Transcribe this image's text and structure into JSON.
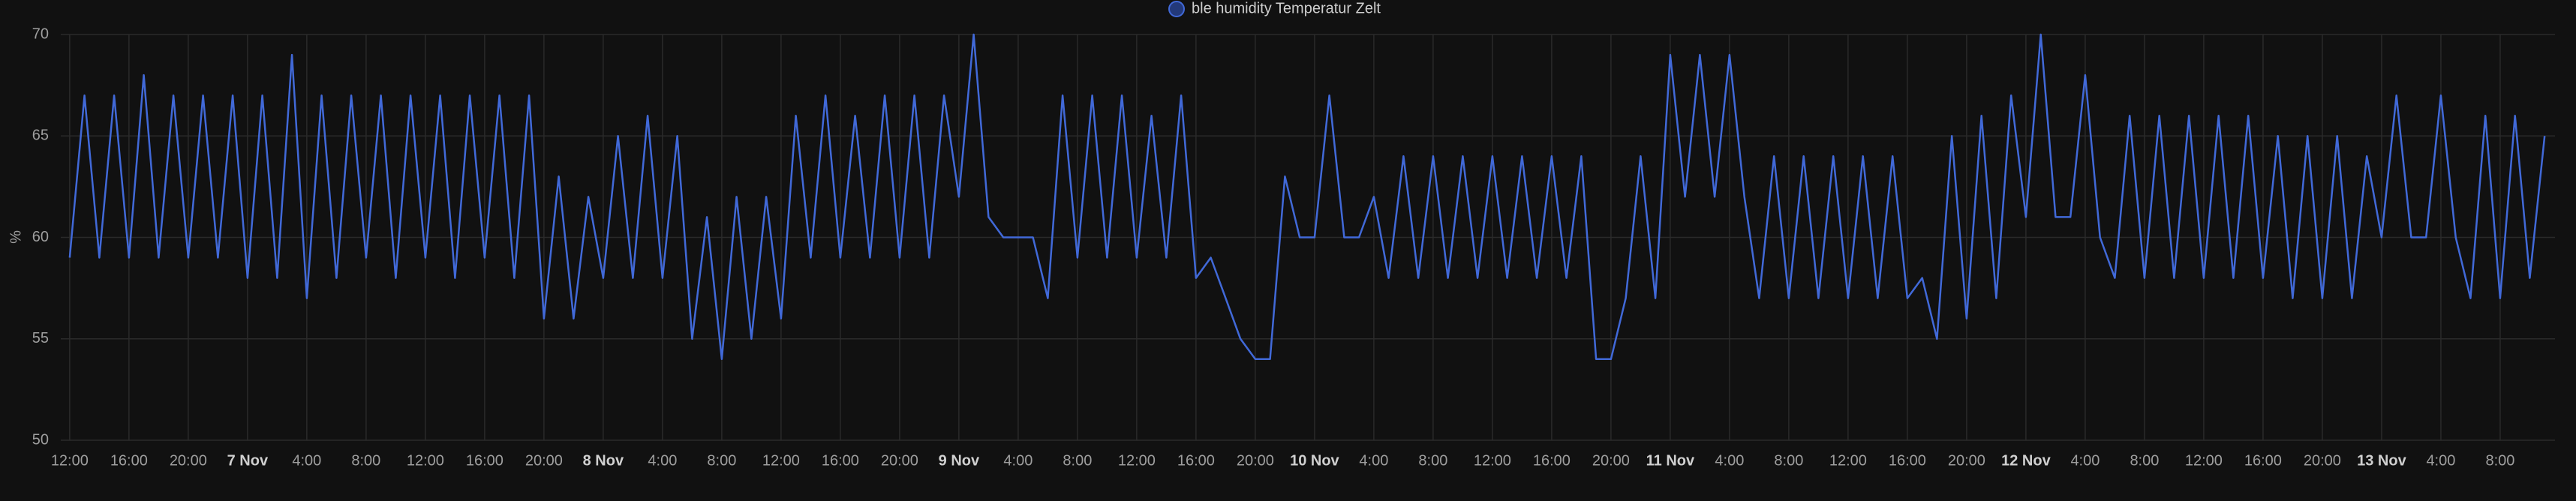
{
  "chart_data": {
    "type": "line",
    "title": "ble humidity Temperatur Zelt",
    "y_label": "%",
    "x": [
      0,
      1,
      2,
      3,
      4,
      5,
      6,
      7,
      8,
      9,
      10,
      11,
      12,
      13,
      14,
      15,
      16,
      17,
      18,
      19,
      20,
      21,
      22,
      23,
      24,
      25,
      26,
      27,
      28,
      29,
      30,
      31,
      32,
      33,
      34,
      35,
      36,
      37,
      38,
      39,
      40,
      41,
      42,
      43,
      44,
      45,
      46,
      47,
      48,
      49,
      50,
      51,
      52,
      53,
      54,
      55,
      56,
      57,
      58,
      59,
      60,
      61,
      62,
      63,
      64,
      65,
      66,
      67,
      68,
      69,
      70,
      71,
      72,
      73,
      74,
      75,
      76,
      77,
      78,
      79,
      80,
      81,
      82,
      83,
      84,
      85,
      86,
      87,
      88,
      89,
      90,
      91,
      92,
      93,
      94,
      95,
      96,
      97,
      98,
      99,
      100,
      101,
      102,
      103,
      104,
      105,
      106,
      107,
      108,
      109,
      110,
      111,
      112,
      113,
      114,
      115,
      116,
      117,
      118,
      119,
      120,
      121,
      122,
      123,
      124,
      125,
      126,
      127,
      128,
      129,
      130,
      131,
      132,
      133,
      134,
      135,
      136,
      137,
      138,
      139,
      140,
      141,
      142,
      143,
      144,
      145,
      146,
      147,
      148,
      149,
      150,
      151,
      152,
      153,
      154,
      155,
      156,
      157,
      158,
      159,
      160,
      161,
      162,
      163,
      164,
      165,
      166,
      167
    ],
    "series": [
      {
        "name": "ble humidity Temperatur Zelt",
        "color": "#4169d8",
        "values": [
          59,
          67,
          59,
          67,
          59,
          68,
          59,
          67,
          59,
          67,
          59,
          67,
          58,
          67,
          58,
          69,
          57,
          67,
          58,
          67,
          59,
          67,
          58,
          67,
          59,
          67,
          58,
          67,
          59,
          67,
          58,
          67,
          56,
          63,
          56,
          62,
          58,
          65,
          58,
          66,
          58,
          65,
          55,
          61,
          54,
          62,
          55,
          62,
          56,
          66,
          59,
          67,
          59,
          66,
          59,
          67,
          59,
          67,
          59,
          67,
          62,
          70,
          61,
          60,
          60,
          60,
          57,
          67,
          59,
          67,
          59,
          67,
          59,
          66,
          59,
          67,
          58,
          59,
          57,
          55,
          54,
          54,
          63,
          60,
          60,
          67,
          60,
          60,
          62,
          58,
          64,
          58,
          64,
          58,
          64,
          58,
          64,
          58,
          64,
          58,
          64,
          58,
          64,
          54,
          54,
          57,
          64,
          57,
          69,
          62,
          69,
          62,
          69,
          62,
          57,
          64,
          57,
          64,
          57,
          64,
          57,
          64,
          57,
          64,
          57,
          58,
          55,
          65,
          56,
          66,
          57,
          67,
          61,
          70,
          61,
          61,
          68,
          60,
          58,
          66,
          58,
          66,
          58,
          66,
          58,
          66,
          58,
          66,
          58,
          65,
          57,
          65,
          57,
          65,
          57,
          64,
          60,
          67,
          60,
          60,
          67,
          60,
          57,
          66,
          57,
          66,
          58,
          65
        ]
      }
    ],
    "xlim": [
      -0.6,
      167.7
    ],
    "xticks": [
      {
        "value": 0,
        "label": "12:00"
      },
      {
        "value": 4,
        "label": "16:00"
      },
      {
        "value": 8,
        "label": "20:00"
      },
      {
        "value": 12,
        "label": "7 Nov"
      },
      {
        "value": 16,
        "label": "4:00"
      },
      {
        "value": 20,
        "label": "8:00"
      },
      {
        "value": 24,
        "label": "12:00"
      },
      {
        "value": 28,
        "label": "16:00"
      },
      {
        "value": 32,
        "label": "20:00"
      },
      {
        "value": 36,
        "label": "8 Nov"
      },
      {
        "value": 40,
        "label": "4:00"
      },
      {
        "value": 44,
        "label": "8:00"
      },
      {
        "value": 48,
        "label": "12:00"
      },
      {
        "value": 52,
        "label": "16:00"
      },
      {
        "value": 56,
        "label": "20:00"
      },
      {
        "value": 60,
        "label": "9 Nov"
      },
      {
        "value": 64,
        "label": "4:00"
      },
      {
        "value": 68,
        "label": "8:00"
      },
      {
        "value": 72,
        "label": "12:00"
      },
      {
        "value": 76,
        "label": "16:00"
      },
      {
        "value": 80,
        "label": "20:00"
      },
      {
        "value": 84,
        "label": "10 Nov"
      },
      {
        "value": 88,
        "label": "4:00"
      },
      {
        "value": 92,
        "label": "8:00"
      },
      {
        "value": 96,
        "label": "12:00"
      },
      {
        "value": 100,
        "label": "16:00"
      },
      {
        "value": 104,
        "label": "20:00"
      },
      {
        "value": 108,
        "label": "11 Nov"
      },
      {
        "value": 112,
        "label": "4:00"
      },
      {
        "value": 116,
        "label": "8:00"
      },
      {
        "value": 120,
        "label": "12:00"
      },
      {
        "value": 124,
        "label": "16:00"
      },
      {
        "value": 128,
        "label": "20:00"
      },
      {
        "value": 132,
        "label": "12 Nov"
      },
      {
        "value": 136,
        "label": "4:00"
      },
      {
        "value": 140,
        "label": "8:00"
      },
      {
        "value": 144,
        "label": "12:00"
      },
      {
        "value": 148,
        "label": "16:00"
      },
      {
        "value": 152,
        "label": "20:00"
      },
      {
        "value": 156,
        "label": "13 Nov"
      },
      {
        "value": 160,
        "label": "4:00"
      },
      {
        "value": 164,
        "label": "8:00"
      }
    ],
    "ylim": [
      50,
      70
    ],
    "yticks": [
      50,
      55,
      60,
      65,
      70
    ],
    "grid": true,
    "legend": "top"
  }
}
